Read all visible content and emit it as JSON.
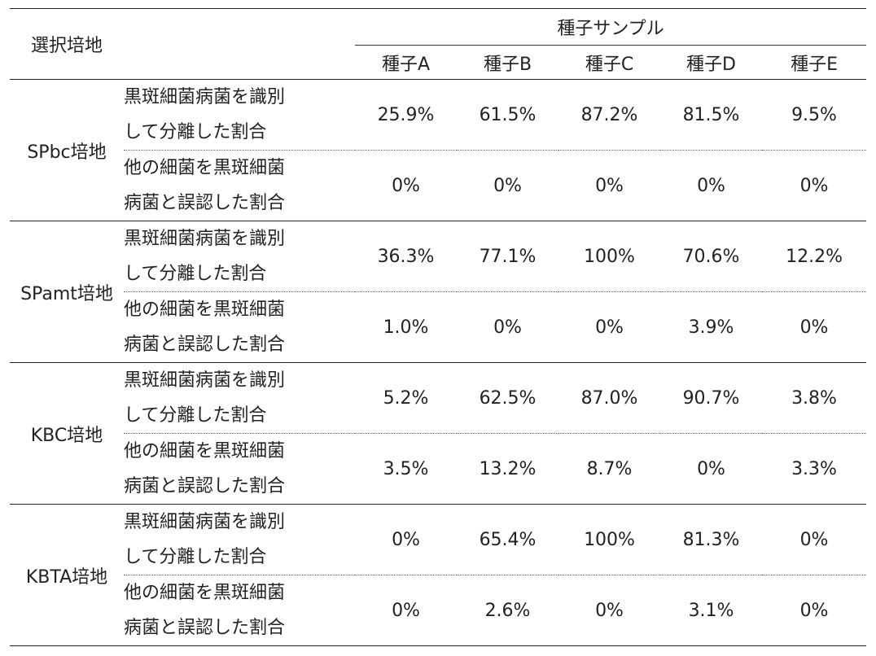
{
  "header": {
    "medium_label": "選択培地",
    "group_label": "種子サンプル",
    "samples": [
      "種子A",
      "種子B",
      "種子C",
      "種子D",
      "種子E"
    ]
  },
  "groups": [
    {
      "medium": "SPbc培地",
      "rows": [
        {
          "metric": [
            "黒斑細菌病菌を識別",
            "して分離した割合"
          ],
          "values": [
            "25.9%",
            "61.5%",
            "87.2%",
            "81.5%",
            "9.5%"
          ]
        },
        {
          "metric": [
            "他の細菌を黒斑細菌",
            "病菌と誤認した割合"
          ],
          "values": [
            "0%",
            "0%",
            "0%",
            "0%",
            "0%"
          ]
        }
      ]
    },
    {
      "medium": "SPamt培地",
      "rows": [
        {
          "metric": [
            "黒斑細菌病菌を識別",
            "して分離した割合"
          ],
          "values": [
            "36.3%",
            "77.1%",
            "100%",
            "70.6%",
            "12.2%"
          ]
        },
        {
          "metric": [
            "他の細菌を黒斑細菌",
            "病菌と誤認した割合"
          ],
          "values": [
            "1.0%",
            "0%",
            "0%",
            "3.9%",
            "0%"
          ]
        }
      ]
    },
    {
      "medium": "KBC培地",
      "rows": [
        {
          "metric": [
            "黒斑細菌病菌を識別",
            "して分離した割合"
          ],
          "values": [
            "5.2%",
            "62.5%",
            "87.0%",
            "90.7%",
            "3.8%"
          ]
        },
        {
          "metric": [
            "他の細菌を黒斑細菌",
            "病菌と誤認した割合"
          ],
          "values": [
            "3.5%",
            "13.2%",
            "8.7%",
            "0%",
            "3.3%"
          ]
        }
      ]
    },
    {
      "medium": "KBTA培地",
      "rows": [
        {
          "metric": [
            "黒斑細菌病菌を識別",
            "して分離した割合"
          ],
          "values": [
            "0%",
            "65.4%",
            "100%",
            "81.3%",
            "0%"
          ]
        },
        {
          "metric": [
            "他の細菌を黒斑細菌",
            "病菌と誤認した割合"
          ],
          "values": [
            "0%",
            "2.6%",
            "0%",
            "3.1%",
            "0%"
          ]
        }
      ]
    }
  ]
}
